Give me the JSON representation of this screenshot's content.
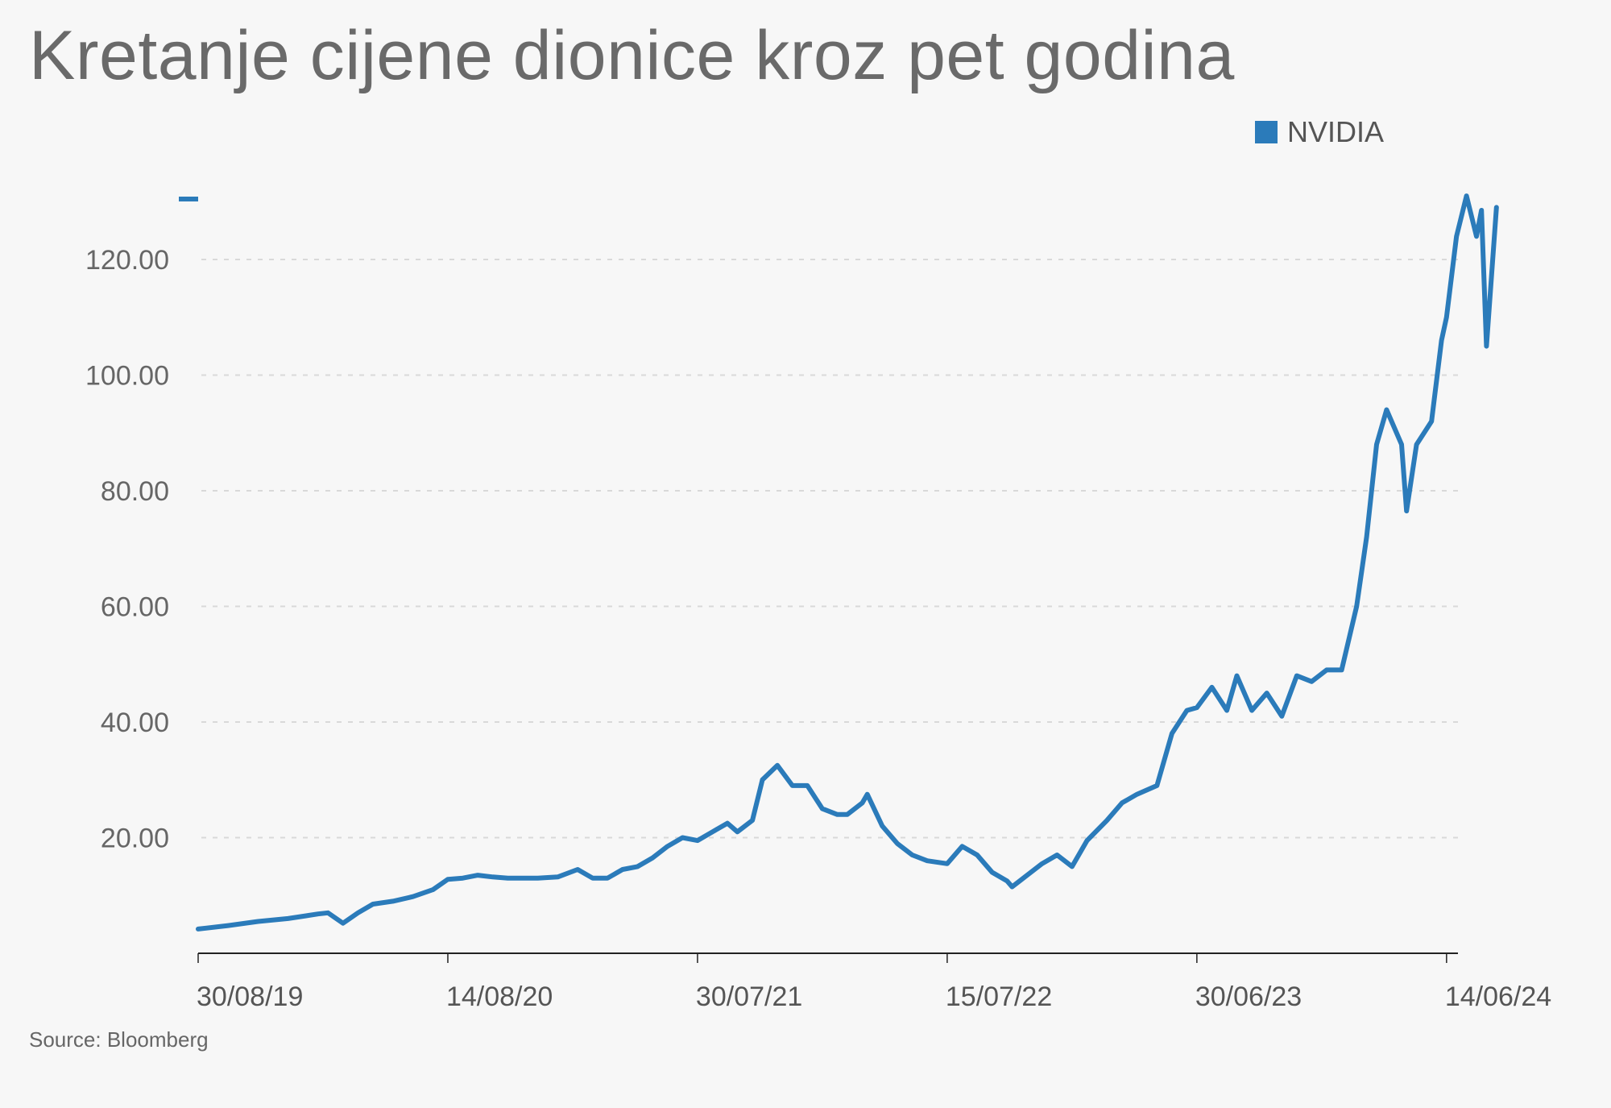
{
  "title": "Kretanje cijene dionice kroz pet godina",
  "source": "Source: Bloomberg",
  "colors": {
    "line": "#2b7bba",
    "grid": "#d9d9d9",
    "axis": "#222222"
  },
  "chart_data": {
    "type": "line",
    "title": "Kretanje cijene dionice kroz pet godina",
    "xlabel": "",
    "ylabel": "",
    "ylim": [
      0,
      137
    ],
    "xlim": [
      "2019-08-30",
      "2024-06-30"
    ],
    "yticks": [
      20,
      40,
      60,
      80,
      100,
      120
    ],
    "ytick_labels": [
      "20.00",
      "40.00",
      "60.00",
      "80.00",
      "100.00",
      "120.00"
    ],
    "xticks": [
      "2019-08-30",
      "2020-08-14",
      "2021-07-30",
      "2022-07-15",
      "2023-06-30",
      "2024-06-14"
    ],
    "xtick_labels": [
      "30/08/19",
      "14/08/20",
      "30/07/21",
      "15/07/22",
      "30/06/23",
      "14/06/24"
    ],
    "grid": true,
    "legend_position": "top-right",
    "series": [
      {
        "name": "NVIDIA",
        "color": "#2b7bba",
        "x": [
          "2019-08-30",
          "2019-10-11",
          "2019-11-22",
          "2020-01-03",
          "2020-02-14",
          "2020-02-28",
          "2020-03-20",
          "2020-04-10",
          "2020-05-01",
          "2020-05-29",
          "2020-06-26",
          "2020-07-24",
          "2020-08-14",
          "2020-09-04",
          "2020-09-25",
          "2020-10-16",
          "2020-11-06",
          "2020-11-27",
          "2020-12-18",
          "2021-01-15",
          "2021-02-12",
          "2021-03-05",
          "2021-03-26",
          "2021-04-16",
          "2021-05-07",
          "2021-05-28",
          "2021-06-18",
          "2021-07-09",
          "2021-07-30",
          "2021-08-20",
          "2021-09-10",
          "2021-09-24",
          "2021-10-15",
          "2021-10-29",
          "2021-11-19",
          "2021-12-10",
          "2021-12-31",
          "2022-01-21",
          "2022-02-11",
          "2022-02-25",
          "2022-03-18",
          "2022-03-25",
          "2022-04-15",
          "2022-05-06",
          "2022-05-27",
          "2022-06-17",
          "2022-07-15",
          "2022-08-05",
          "2022-08-26",
          "2022-09-16",
          "2022-10-07",
          "2022-10-14",
          "2022-11-04",
          "2022-11-25",
          "2022-12-16",
          "2023-01-06",
          "2023-01-27",
          "2023-02-24",
          "2023-03-17",
          "2023-04-07",
          "2023-05-05",
          "2023-05-26",
          "2023-06-16",
          "2023-06-30",
          "2023-07-21",
          "2023-08-11",
          "2023-08-25",
          "2023-09-15",
          "2023-10-06",
          "2023-10-27",
          "2023-11-17",
          "2023-12-08",
          "2023-12-29",
          "2024-01-19",
          "2024-02-09",
          "2024-02-23",
          "2024-03-08",
          "2024-03-22",
          "2024-04-12",
          "2024-04-19",
          "2024-05-03",
          "2024-05-24",
          "2024-06-07",
          "2024-06-14",
          "2024-06-28",
          "2024-07-12",
          "2024-07-26",
          "2024-08-02",
          "2024-08-09",
          "2024-08-23"
        ],
        "values": [
          4.2,
          4.8,
          5.5,
          6.0,
          6.8,
          7.0,
          5.2,
          7.0,
          8.5,
          9.0,
          9.8,
          11.0,
          12.8,
          13.0,
          13.5,
          13.2,
          13.0,
          13.0,
          13.0,
          13.2,
          14.5,
          13.0,
          13.0,
          14.5,
          15.0,
          16.5,
          18.5,
          20.0,
          19.5,
          21.0,
          22.5,
          21.0,
          23.0,
          30.0,
          32.5,
          29.0,
          29.0,
          25.0,
          24.0,
          24.0,
          26.0,
          27.5,
          22.0,
          19.0,
          17.0,
          16.0,
          15.5,
          18.5,
          17.0,
          14.0,
          12.5,
          11.5,
          13.5,
          15.5,
          17.0,
          15.0,
          19.5,
          23.0,
          26.0,
          27.5,
          29.0,
          38.0,
          42.0,
          42.5,
          46.0,
          42.0,
          48.0,
          42.0,
          45.0,
          41.0,
          48.0,
          47.0,
          49.0,
          49.0,
          60.0,
          72.0,
          88.0,
          94.0,
          88.0,
          76.5,
          88.0,
          92.0,
          106.0,
          110.0,
          124.0,
          131.0,
          124.0,
          128.5,
          105.0,
          129.0
        ]
      }
    ]
  }
}
